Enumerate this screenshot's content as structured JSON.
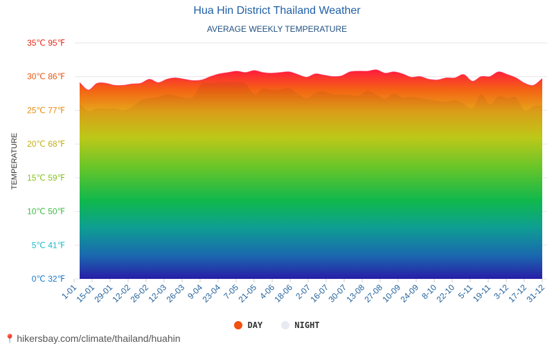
{
  "title": "Hua Hin District Thailand Weather",
  "subtitle": "AVERAGE WEEKLY TEMPERATURE",
  "footer": "hikersbay.com/climate/thailand/huahin",
  "legend": [
    {
      "label": "DAY",
      "color": "#f0520f"
    },
    {
      "label": "NIGHT",
      "color": "#e6ebf1"
    }
  ],
  "chart_data": {
    "type": "area",
    "ylabel": "TEMPERATURE",
    "ylim": [
      0,
      35
    ],
    "y_ticks": [
      {
        "value": 0,
        "label": "0℃ 32℉",
        "color": "#1778c8"
      },
      {
        "value": 5,
        "label": "5℃ 41℉",
        "color": "#1bb8c8"
      },
      {
        "value": 10,
        "label": "10℃ 50℉",
        "color": "#3ebb43"
      },
      {
        "value": 15,
        "label": "15℃ 59℉",
        "color": "#86c020"
      },
      {
        "value": 20,
        "label": "20℃ 68℉",
        "color": "#c2b012"
      },
      {
        "value": 25,
        "label": "25℃ 77℉",
        "color": "#e58a0f"
      },
      {
        "value": 30,
        "label": "30℃ 86℉",
        "color": "#e85612"
      },
      {
        "value": 35,
        "label": "35℃ 95℉",
        "color": "#e52a18"
      }
    ],
    "x_tick_labels": [
      "1-01",
      "15-01",
      "29-01",
      "12-02",
      "26-02",
      "12-03",
      "26-03",
      "9-04",
      "23-04",
      "7-05",
      "21-05",
      "4-06",
      "18-06",
      "2-07",
      "16-07",
      "30-07",
      "13-08",
      "27-08",
      "10-09",
      "24-09",
      "8-10",
      "22-10",
      "5-11",
      "19-11",
      "3-12",
      "17-12",
      "31-12"
    ],
    "series": [
      {
        "name": "DAY",
        "values": [
          29.1,
          28.0,
          29.0,
          29.0,
          28.7,
          28.7,
          28.9,
          29.0,
          29.6,
          29.1,
          29.6,
          29.8,
          29.6,
          29.4,
          29.5,
          30.0,
          30.4,
          30.6,
          30.8,
          30.6,
          30.9,
          30.6,
          30.5,
          30.6,
          30.7,
          30.3,
          29.9,
          30.4,
          30.2,
          30.0,
          30.1,
          30.7,
          30.8,
          30.8,
          31.0,
          30.5,
          30.7,
          30.4,
          29.9,
          30.0,
          29.6,
          29.5,
          29.8,
          29.8,
          30.3,
          29.3,
          30.0,
          30.0,
          30.7,
          30.3,
          29.8,
          29.0,
          28.7,
          29.7
        ]
      },
      {
        "name": "NIGHT",
        "values": [
          26.0,
          24.9,
          25.3,
          25.2,
          25.3,
          25.0,
          25.5,
          26.5,
          26.8,
          27.0,
          27.4,
          27.2,
          26.9,
          27.0,
          29.0,
          29.0,
          29.2,
          29.2,
          29.2,
          29.0,
          27.4,
          28.2,
          28.0,
          28.1,
          28.3,
          27.5,
          26.8,
          27.6,
          27.8,
          27.4,
          27.3,
          27.3,
          27.2,
          27.9,
          27.3,
          26.7,
          27.5,
          26.9,
          27.0,
          26.8,
          26.6,
          26.4,
          26.3,
          26.5,
          26.0,
          25.3,
          27.4,
          25.9,
          27.1,
          26.8,
          26.9,
          25.0,
          25.6,
          25.7
        ]
      }
    ]
  }
}
